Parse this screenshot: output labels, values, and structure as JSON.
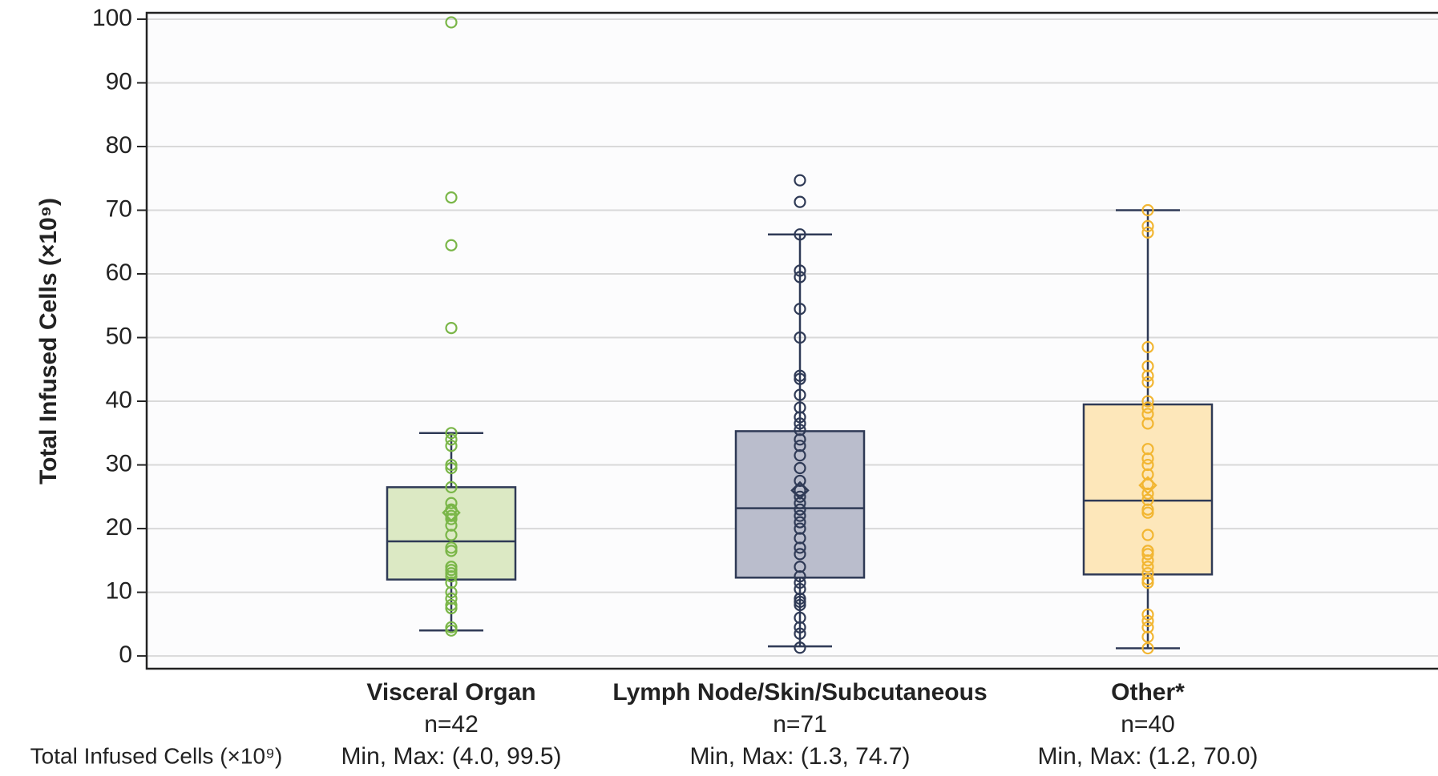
{
  "chart_data": {
    "type": "box",
    "y_axis_label": "Total Infused Cells (×10⁹)",
    "row_label": "Total Infused Cells (×10⁹)",
    "ylim": [
      -2,
      101
    ],
    "yticks": [
      0,
      10,
      20,
      30,
      40,
      50,
      60,
      70,
      80,
      90,
      100
    ],
    "grid": true,
    "box_stroke": "#2f3a56",
    "groups": [
      {
        "name": "Visceral Organ",
        "n_label": "n=42",
        "range_label": "Min, Max: (4.0, 99.5)",
        "color": "#7ab648",
        "fill": "#dce9c4",
        "whisker_low": 4.0,
        "q1": 12,
        "median": 18,
        "q3": 26.5,
        "whisker_high": 35,
        "mean": 22.5,
        "points": [
          99.5,
          72,
          64.5,
          51.5,
          35,
          34,
          33,
          30,
          29.5,
          26.5,
          24,
          23,
          22,
          21.5,
          20.5,
          19,
          17,
          16.5,
          14,
          13.5,
          13,
          12.5,
          11.5,
          10,
          9,
          8,
          7.5,
          4.5,
          4
        ]
      },
      {
        "name": "Lymph Node/Skin/Subcutaneous",
        "n_label": "n=71",
        "range_label": "Min, Max: (1.3, 74.7)",
        "color": "#2f3a56",
        "fill": "#babdcc",
        "whisker_low": 1.5,
        "q1": 12.3,
        "median": 23.2,
        "q3": 35.3,
        "whisker_high": 66.2,
        "mean": 26,
        "points": [
          74.7,
          71.3,
          66.2,
          60.5,
          59.5,
          54.5,
          50,
          44,
          43.5,
          41,
          39,
          37.5,
          36.5,
          35.5,
          34,
          33,
          31.5,
          29.5,
          27.5,
          26,
          25,
          24,
          23,
          22,
          21,
          20,
          18.5,
          17,
          16,
          14,
          12.5,
          11.5,
          10.5,
          9,
          8.5,
          8,
          6,
          4.5,
          3.5,
          1.3
        ]
      },
      {
        "name": "Other*",
        "n_label": "n=40",
        "range_label": "Min, Max: (1.2, 70.0)",
        "color": "#f2b632",
        "fill": "#fde7ba",
        "whisker_low": 1.2,
        "q1": 12.8,
        "median": 24.4,
        "q3": 39.5,
        "whisker_high": 70,
        "mean": 26.8,
        "points": [
          70,
          67.5,
          66.5,
          48.5,
          45.5,
          44,
          43,
          40,
          39,
          38,
          36.5,
          32.5,
          31,
          30,
          28.5,
          27,
          25.5,
          24.5,
          23,
          22.5,
          19,
          16.5,
          16,
          15,
          14,
          13,
          12,
          11.5,
          6.5,
          5.5,
          4.5,
          3,
          1.2
        ]
      }
    ]
  }
}
